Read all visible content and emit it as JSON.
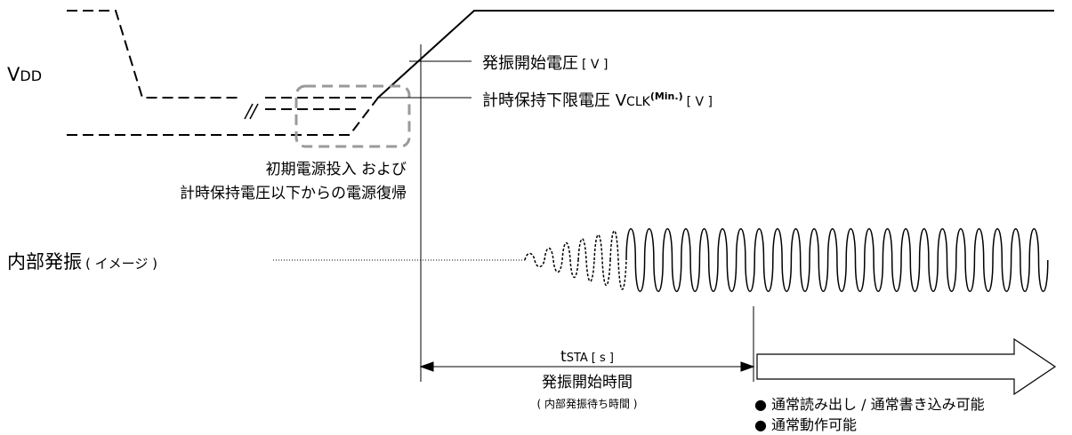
{
  "labels": {
    "vdd_main": "V",
    "vdd_sub": "DD",
    "osc_start_voltage": "発振開始電圧",
    "osc_start_voltage_unit": "[ V ]",
    "hold_voltage": "計時保持下限電圧 V",
    "hold_voltage_sub": "CLK",
    "hold_voltage_sup": "(Min.)",
    "hold_voltage_unit": "[ V ]",
    "initial_power_line1": "初期電源投入 および",
    "initial_power_line2": "計時保持電圧以下からの電源復帰",
    "internal_osc": "内部発振",
    "internal_osc_note": "( イメージ )",
    "break_mark": "//",
    "tsta_t": "t",
    "tsta_sub": "STA",
    "tsta_unit": "[ s ]",
    "osc_start_time": "発振開始時間",
    "osc_wait_time": "( 内部発振待ち時間 )",
    "bullet1": "● 通常読み出し / 通常書き込み可能",
    "bullet2": "● 通常動作可能"
  },
  "colors": {
    "line": "#000000",
    "highlight_box": "#9a9a9a"
  }
}
